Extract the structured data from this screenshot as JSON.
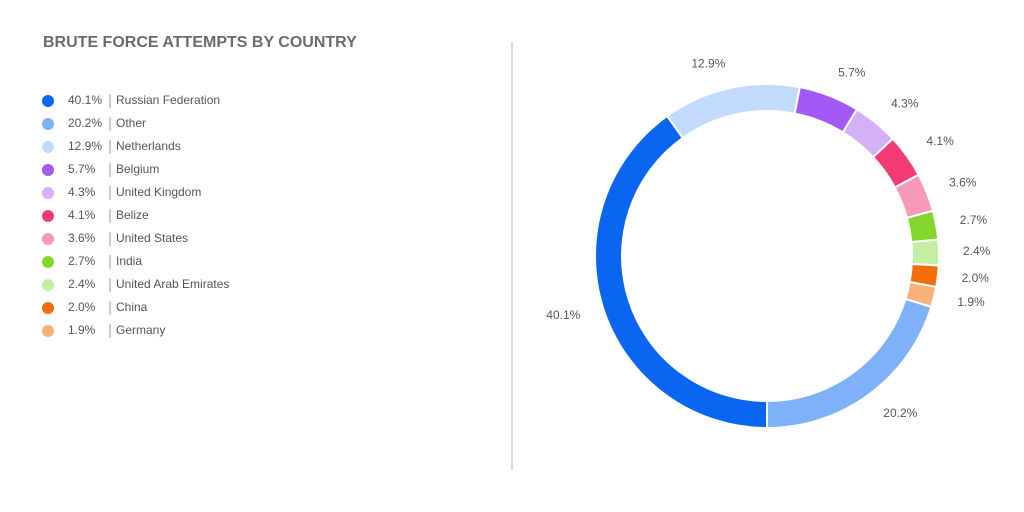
{
  "chart_data": {
    "type": "donut",
    "title": "BRUTE FORCE ATTEMPTS BY COUNTRY",
    "categories": [
      "Russian Federation",
      "Other",
      "Netherlands",
      "Belgium",
      "United Kingdom",
      "Belize",
      "United States",
      "India",
      "United Arab Emirates",
      "China",
      "Germany"
    ],
    "values": [
      40.1,
      20.2,
      12.9,
      5.7,
      4.3,
      4.1,
      3.6,
      2.7,
      2.4,
      2.0,
      1.9
    ],
    "value_labels": [
      "40.1%",
      "20.2%",
      "12.9%",
      "5.7%",
      "4.3%",
      "4.1%",
      "3.6%",
      "2.7%",
      "2.4%",
      "2.0%",
      "1.9%"
    ],
    "colors": [
      "#0a66f0",
      "#7fb0fa",
      "#c2dafc",
      "#a259f5",
      "#d4b0f7",
      "#f23a74",
      "#f799b8",
      "#82d62e",
      "#c3f0a0",
      "#f56c0a",
      "#f7b27a"
    ]
  }
}
